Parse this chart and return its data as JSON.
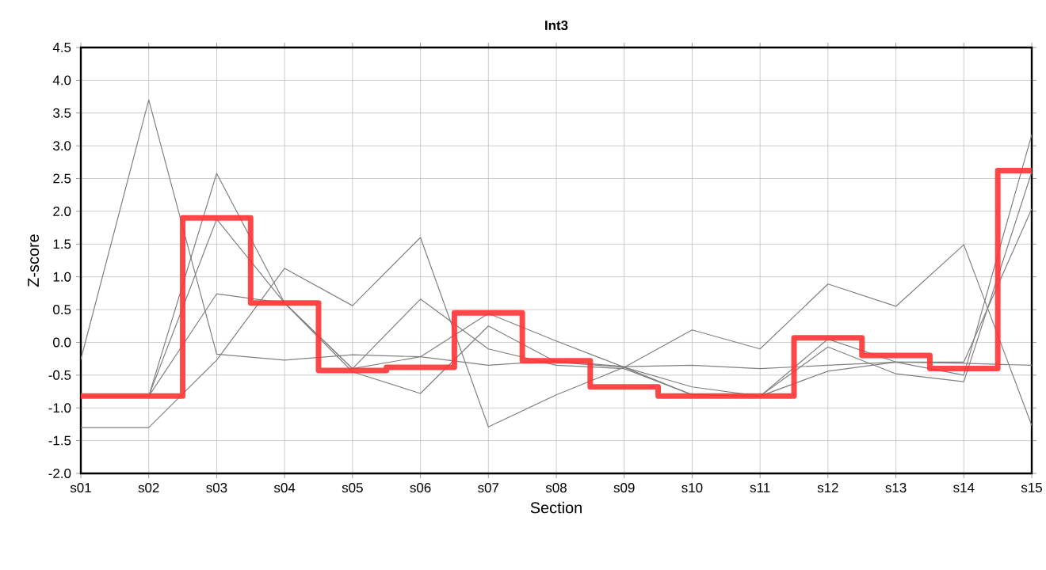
{
  "chart_data": {
    "type": "line",
    "title": "Int3",
    "xlabel": "Section",
    "ylabel": "Z-score",
    "categories": [
      "s01",
      "s02",
      "s03",
      "s04",
      "s05",
      "s06",
      "s07",
      "s08",
      "s09",
      "s10",
      "s11",
      "s12",
      "s13",
      "s14",
      "s15"
    ],
    "series": [
      {
        "color": "#808080",
        "values": [
          -0.26,
          3.7,
          -0.18,
          -0.27,
          -0.19,
          -0.22,
          -0.35,
          -0.28,
          -0.37,
          -0.35,
          -0.4,
          -0.35,
          -0.3,
          -0.32,
          -0.35
        ]
      },
      {
        "color": "#808080",
        "values": [
          -0.82,
          -0.82,
          2.58,
          0.6,
          -0.45,
          -0.78,
          0.25,
          -0.3,
          -0.38,
          -0.68,
          -0.82,
          0.05,
          -0.3,
          -0.5,
          3.17
        ]
      },
      {
        "color": "#808080",
        "values": [
          -0.82,
          -0.82,
          1.88,
          0.6,
          -0.4,
          0.66,
          -0.1,
          -0.35,
          -0.4,
          -0.8,
          -0.82,
          -0.07,
          -0.48,
          -0.6,
          2.6
        ]
      },
      {
        "color": "#808080",
        "values": [
          -0.82,
          -0.82,
          0.74,
          0.6,
          -0.4,
          -0.22,
          0.44,
          0.02,
          -0.38,
          -0.8,
          -0.82,
          -0.44,
          -0.3,
          -0.3,
          2.04
        ]
      },
      {
        "color": "#808080",
        "values": [
          -1.3,
          -1.3,
          -0.27,
          1.13,
          0.56,
          1.6,
          -1.29,
          -0.8,
          -0.38,
          0.19,
          -0.1,
          0.89,
          0.55,
          1.49,
          -1.27
        ]
      },
      {
        "type": "step",
        "color": "#ff3333",
        "values": [
          -0.82,
          -0.82,
          1.9,
          0.6,
          -0.43,
          -0.38,
          0.45,
          -0.28,
          -0.68,
          -0.82,
          -0.82,
          0.07,
          -0.2,
          -0.4,
          2.62
        ]
      }
    ],
    "ylim": [
      -2,
      4.5
    ],
    "yticks": [
      {
        "value": -2,
        "label": "-2.0"
      },
      -1.5,
      {
        "value": -1,
        "label": "-1.0"
      },
      -0.5,
      {
        "value": 0,
        "label": "0.0"
      },
      0.5,
      {
        "value": 1,
        "label": "1.0"
      },
      1.5,
      {
        "value": 2,
        "label": "2.0"
      },
      2.5,
      {
        "value": 3,
        "label": "3.0"
      },
      3.5,
      {
        "value": 4,
        "label": "4.0"
      },
      4.5
    ],
    "grid": true,
    "marker": "none",
    "line_style": "solid"
  }
}
